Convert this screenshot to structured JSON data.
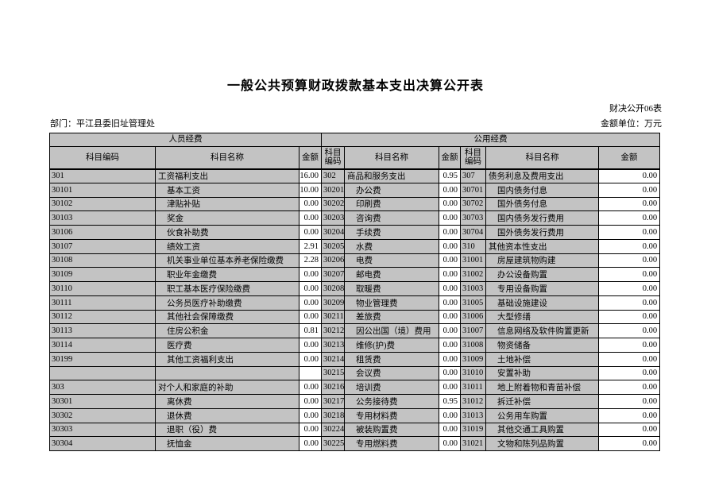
{
  "title": "一般公共预算财政拨款基本支出决算公开表",
  "form_number": "财决公开06表",
  "department_label": "部门：平江县委旧址管理处",
  "unit_label": "金额单位：万元",
  "table": {
    "groups": [
      "人员经费",
      "公用经费"
    ],
    "col_headers": [
      "科目编码",
      "科目名称",
      "金额",
      "科目编码",
      "科目名称",
      "金额",
      "科目编码",
      "科目名称",
      "金额"
    ],
    "colors": {
      "cell_gray": "#c3c3c3",
      "cell_white": "#ffffff",
      "border": "#000000"
    },
    "rows": [
      [
        "301",
        "工资福利支出",
        "16.00",
        0,
        "302",
        "商品和服务支出",
        "0.95",
        0,
        "307",
        "债务利息及费用支出",
        "0.00",
        0
      ],
      [
        "30101",
        "基本工资",
        "10.00",
        1,
        "30201",
        "办公费",
        "0.00",
        1,
        "30701",
        "国内债务付息",
        "0.00",
        1
      ],
      [
        "30102",
        "津贴补贴",
        "0.00",
        1,
        "30202",
        "印刷费",
        "0.00",
        1,
        "30702",
        "国外债务付息",
        "0.00",
        1
      ],
      [
        "30103",
        "奖金",
        "0.00",
        1,
        "30203",
        "咨询费",
        "0.00",
        1,
        "30703",
        "国内债务发行费用",
        "0.00",
        1
      ],
      [
        "30106",
        "伙食补助费",
        "0.00",
        1,
        "30204",
        "手续费",
        "0.00",
        1,
        "30704",
        "国外债务发行费用",
        "0.00",
        1
      ],
      [
        "30107",
        "绩效工资",
        "2.91",
        1,
        "30205",
        "水费",
        "0.00",
        1,
        "310",
        "其他资本性支出",
        "0.00",
        0
      ],
      [
        "30108",
        "机关事业单位基本养老保险缴费",
        "2.28",
        1,
        "30206",
        "电费",
        "0.00",
        1,
        "31001",
        "房屋建筑物购建",
        "0.00",
        1
      ],
      [
        "30109",
        "职业年金缴费",
        "0.00",
        1,
        "30207",
        "邮电费",
        "0.00",
        1,
        "31002",
        "办公设备购置",
        "0.00",
        1
      ],
      [
        "30110",
        "职工基本医疗保险缴费",
        "0.00",
        1,
        "30208",
        "取暖费",
        "0.00",
        1,
        "31003",
        "专用设备购置",
        "0.00",
        1
      ],
      [
        "30111",
        "公务员医疗补助缴费",
        "0.00",
        1,
        "30209",
        "物业管理费",
        "0.00",
        1,
        "31005",
        "基础设施建设",
        "0.00",
        1
      ],
      [
        "30112",
        "其他社会保障缴费",
        "0.00",
        1,
        "30211",
        "差旅费",
        "0.00",
        1,
        "31006",
        "大型修缮",
        "0.00",
        1
      ],
      [
        "30113",
        "住房公积金",
        "0.81",
        1,
        "30212",
        "因公出国（境）费用",
        "0.00",
        1,
        "31007",
        "信息网络及软件购置更新",
        "0.00",
        1
      ],
      [
        "30114",
        "医疗费",
        "0.00",
        1,
        "30213",
        "维修(护)费",
        "0.00",
        1,
        "31008",
        "物资储备",
        "0.00",
        1
      ],
      [
        "30199",
        "其他工资福利支出",
        "0.00",
        1,
        "30214",
        "租赁费",
        "0.00",
        1,
        "31009",
        "土地补偿",
        "0.00",
        1
      ],
      [
        "",
        "",
        "",
        null,
        "30215",
        "会议费",
        "0.00",
        1,
        "31010",
        "安置补助",
        "0.00",
        1
      ],
      [
        "303",
        "对个人和家庭的补助",
        "0.00",
        0,
        "30216",
        "培训费",
        "0.00",
        1,
        "31011",
        "地上附着物和青苗补偿",
        "0.00",
        1
      ],
      [
        "30301",
        "离休费",
        "0.00",
        1,
        "30217",
        "公务接待费",
        "0.95",
        1,
        "31012",
        "拆迁补偿",
        "0.00",
        1
      ],
      [
        "30302",
        "退休费",
        "0.00",
        1,
        "30218",
        "专用材料费",
        "0.00",
        1,
        "31013",
        "公务用车购置",
        "0.00",
        1
      ],
      [
        "30303",
        "退职（役）费",
        "0.00",
        1,
        "30224",
        "被装购置费",
        "0.00",
        1,
        "31019",
        "其他交通工具购置",
        "0.00",
        1
      ],
      [
        "30304",
        "抚恤金",
        "0.00",
        1,
        "30225",
        "专用燃料费",
        "0.00",
        1,
        "31021",
        "文物和陈列品购置",
        "0.00",
        1
      ]
    ]
  }
}
